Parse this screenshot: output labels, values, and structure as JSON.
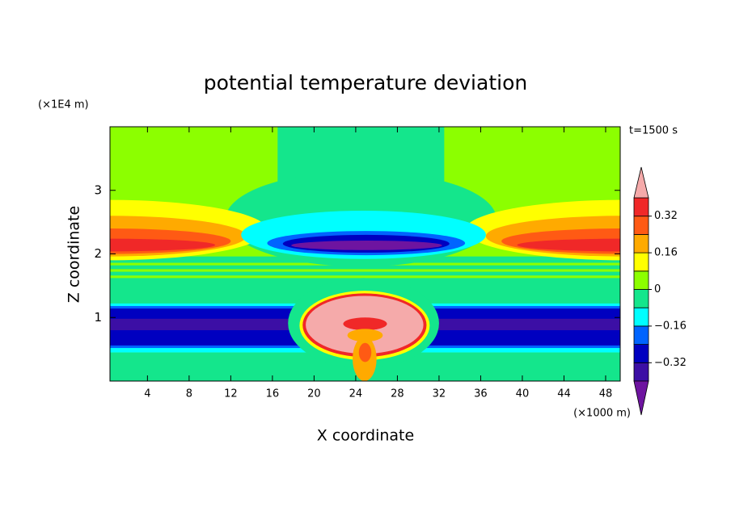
{
  "chart_data": {
    "type": "contour",
    "title": "potential temperature deviation",
    "xlabel": "X coordinate",
    "ylabel": "Z coordinate",
    "xunit": "(×1000 m)",
    "yunit": "(×1E4 m)",
    "time_label": "t=1500 s",
    "xlim": [
      0.4,
      49.4
    ],
    "ylim": [
      0,
      4
    ],
    "xticks": [
      4,
      8,
      12,
      16,
      20,
      24,
      28,
      32,
      36,
      40,
      44,
      48
    ],
    "yticks": [
      1,
      2,
      3
    ],
    "levels": [
      -0.4,
      -0.32,
      -0.24,
      -0.16,
      -0.08,
      0,
      0.08,
      0.16,
      0.24,
      0.32,
      0.4
    ],
    "colors": [
      "#3c0fa5",
      "#0000c0",
      "#0064ff",
      "#00ffff",
      "#14e68c",
      "#8cff00",
      "#ffff00",
      "#ffaa00",
      "#ff5a14",
      "#f02828"
    ],
    "extend_colors": [
      "#6e14a0",
      "#f5aaaa"
    ],
    "cbar_ticks": [
      {
        "value": -0.32,
        "label": "−0.32"
      },
      {
        "value": -0.16,
        "label": "−0.16"
      },
      0,
      0.16,
      0.32
    ],
    "background": 0.04,
    "rects": [
      {
        "x": [
          0,
          50
        ],
        "z": [
          1.2,
          1.96
        ],
        "value": -0.04
      },
      {
        "x": [
          0,
          50
        ],
        "z": [
          1.62,
          1.66
        ],
        "value": 0.04
      },
      {
        "x": [
          0,
          50
        ],
        "z": [
          1.72,
          1.76
        ],
        "value": 0.04
      },
      {
        "x": [
          0,
          50
        ],
        "z": [
          1.82,
          1.86
        ],
        "value": 0.04
      },
      {
        "x": [
          0,
          50
        ],
        "z": [
          0,
          0.45
        ],
        "value": -0.04
      },
      {
        "x": [
          0,
          50
        ],
        "z": [
          0.45,
          1.22
        ],
        "value": -0.12
      },
      {
        "x": [
          0,
          50
        ],
        "z": [
          0.52,
          1.18
        ],
        "value": -0.2
      },
      {
        "x": [
          0,
          50
        ],
        "z": [
          0.56,
          1.14
        ],
        "value": -0.28
      },
      {
        "x": [
          0,
          50
        ],
        "z": [
          0.8,
          0.98
        ],
        "value": -0.36
      },
      {
        "x": [
          16.5,
          32.5
        ],
        "z": [
          2.3,
          4
        ],
        "value": -0.04
      }
    ],
    "ellipses": [
      {
        "x": [
          11.5,
          37.5
        ],
        "z": [
          1.8,
          3.3
        ],
        "value": -0.04
      },
      {
        "x": [
          -15,
          15.5
        ],
        "z": [
          1.9,
          2.85
        ],
        "value": 0.12
      },
      {
        "x": [
          -13,
          13.5
        ],
        "z": [
          1.96,
          2.6
        ],
        "value": 0.2
      },
      {
        "x": [
          -11.5,
          12
        ],
        "z": [
          2.0,
          2.4
        ],
        "value": 0.28
      },
      {
        "x": [
          -10,
          10.5
        ],
        "z": [
          2.04,
          2.24
        ],
        "value": 0.36
      },
      {
        "x": [
          34.5,
          65
        ],
        "z": [
          1.9,
          2.85
        ],
        "value": 0.12
      },
      {
        "x": [
          36.5,
          63
        ],
        "z": [
          1.96,
          2.6
        ],
        "value": 0.2
      },
      {
        "x": [
          38,
          61.5
        ],
        "z": [
          2.0,
          2.4
        ],
        "value": 0.28
      },
      {
        "x": [
          39.5,
          60
        ],
        "z": [
          2.04,
          2.24
        ],
        "value": 0.36
      },
      {
        "x": [
          13,
          36.5
        ],
        "z": [
          1.92,
          2.68
        ],
        "value": -0.12
      },
      {
        "x": [
          15.5,
          34.5
        ],
        "z": [
          1.98,
          2.36
        ],
        "value": -0.2
      },
      {
        "x": [
          17,
          33
        ],
        "z": [
          2.02,
          2.3
        ],
        "value": -0.28
      },
      {
        "x": [
          17.8,
          32.3
        ],
        "z": [
          2.06,
          2.21
        ],
        "value": -0.44
      },
      {
        "x": [
          17.5,
          32
        ],
        "z": [
          0.2,
          1.62
        ],
        "value": -0.04
      },
      {
        "x": [
          18.6,
          31.1
        ],
        "z": [
          0.33,
          1.42
        ],
        "value": 0.12
      },
      {
        "x": [
          18.9,
          30.8
        ],
        "z": [
          0.38,
          1.38
        ],
        "value": 0.36
      },
      {
        "x": [
          19.2,
          30.5
        ],
        "z": [
          0.43,
          1.34
        ],
        "value": 0.44
      },
      {
        "x": [
          22.8,
          27
        ],
        "z": [
          0.8,
          1.0
        ],
        "value": 0.36
      },
      {
        "x": [
          23.2,
          26.6
        ],
        "z": [
          0.62,
          0.82
        ],
        "value": 0.2
      },
      {
        "x": [
          23.7,
          26
        ],
        "z": [
          0,
          0.7
        ],
        "value": 0.2
      },
      {
        "x": [
          24.3,
          25.5
        ],
        "z": [
          0.3,
          0.6
        ],
        "value": 0.28
      }
    ]
  }
}
